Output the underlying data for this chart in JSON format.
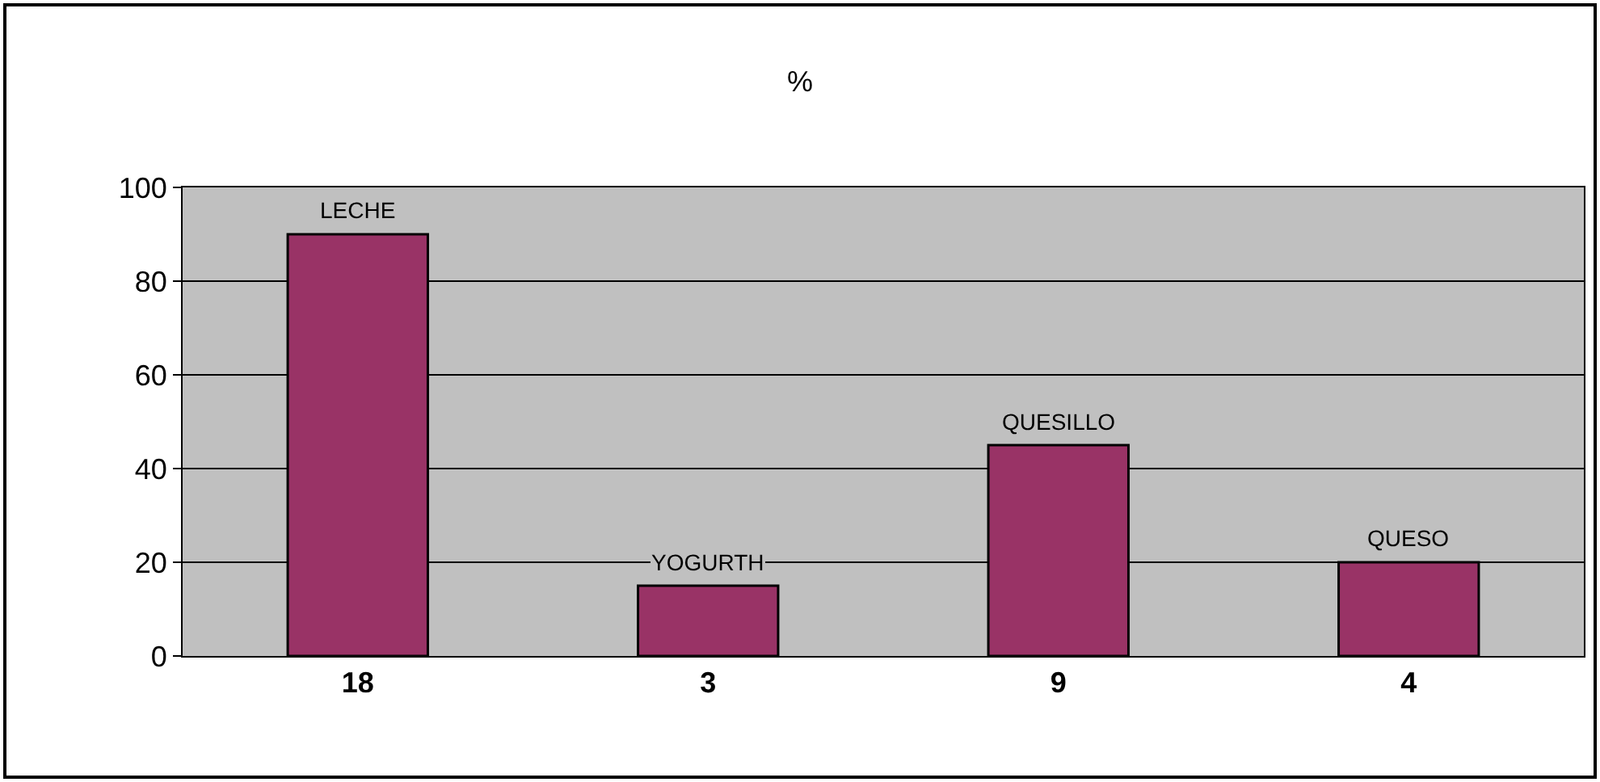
{
  "chart_data": {
    "type": "bar",
    "title": "%",
    "categories": [
      "18",
      "3",
      "9",
      "4"
    ],
    "values": [
      90,
      15,
      45,
      20
    ],
    "color": "#993366",
    "ylim": [
      0,
      100
    ],
    "yticks": [
      0,
      20,
      40,
      60,
      80,
      100
    ],
    "grid": "y",
    "annotations": [
      {
        "text": "LECHE",
        "x": "18",
        "y": 90
      },
      {
        "text": "YOGURTH",
        "x": "3",
        "y": 15
      },
      {
        "text": "QUESILLO",
        "x": "9",
        "y": 45
      },
      {
        "text": "QUESO",
        "x": "4",
        "y": 20
      }
    ]
  }
}
